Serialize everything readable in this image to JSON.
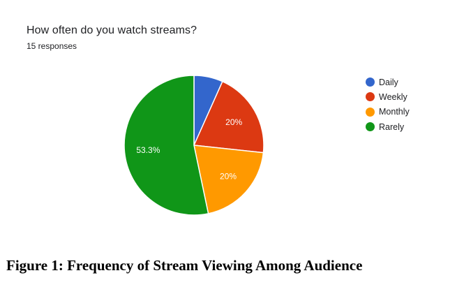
{
  "chart_data": {
    "type": "pie",
    "title": "How often do you watch streams?",
    "subtitle": "15 responses",
    "categories": [
      "Daily",
      "Weekly",
      "Monthly",
      "Rarely"
    ],
    "values": [
      6.7,
      20,
      20,
      53.3
    ],
    "slice_labels": [
      "",
      "20%",
      "20%",
      "53.3%"
    ],
    "colors": [
      "#3366cc",
      "#dc3912",
      "#ff9900",
      "#109618"
    ],
    "legend_position": "right",
    "start_angle_deg": 90,
    "direction": "clockwise"
  },
  "caption": "Figure 1: Frequency of Stream Viewing Among Audience"
}
